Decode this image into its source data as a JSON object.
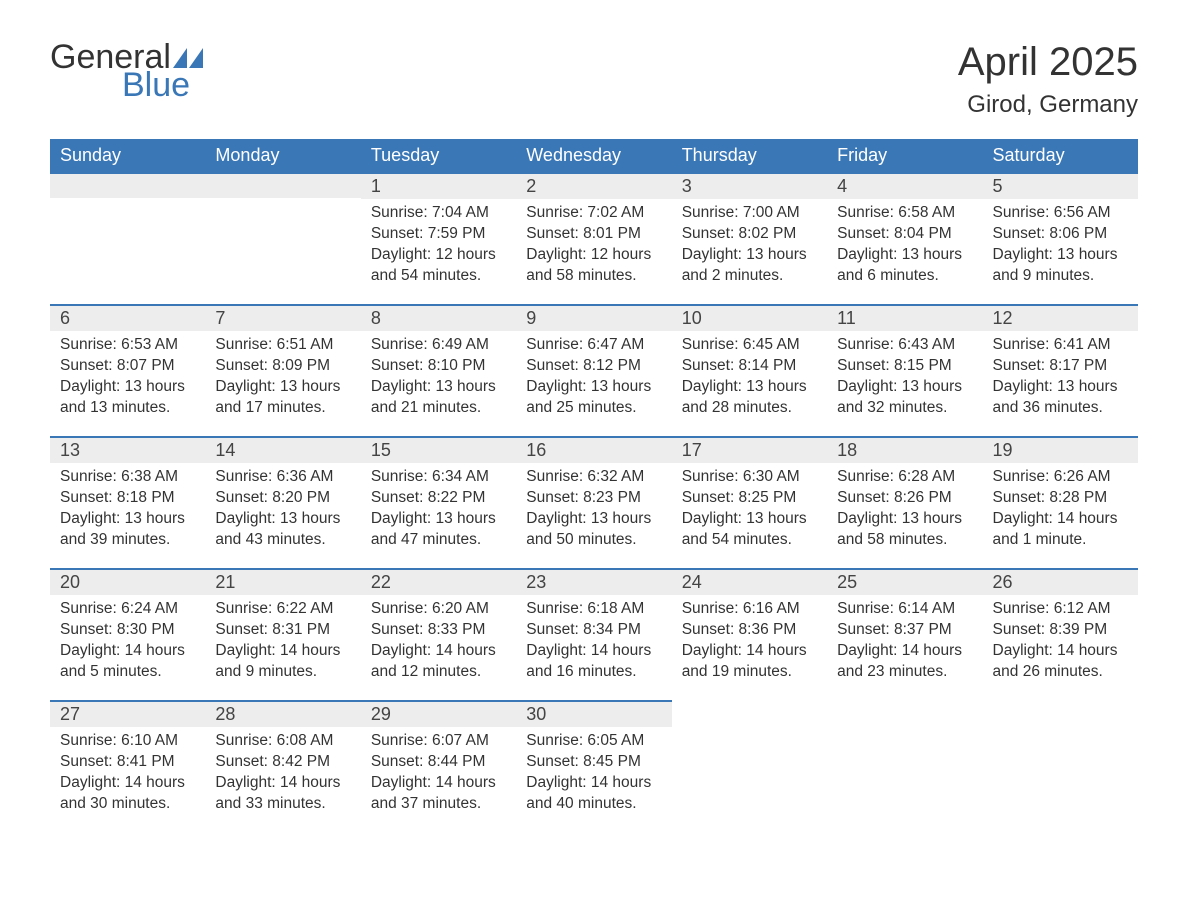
{
  "logo": {
    "word1": "General",
    "word2": "Blue",
    "flag_color": "#3a77b7"
  },
  "title": {
    "month": "April 2025",
    "location": "Girod, Germany"
  },
  "colors": {
    "header_bg": "#3a77b7",
    "header_text": "#ffffff",
    "daynum_bg": "#ededed",
    "daynum_border": "#3a77b7",
    "body_text": "#333333",
    "page_bg": "#ffffff"
  },
  "layout": {
    "columns": 7,
    "rows": 5,
    "font_family": "Arial",
    "day_header_fontsize": 18,
    "title_fontsize": 40,
    "location_fontsize": 24,
    "cell_fontsize": 15.5
  },
  "day_headers": [
    "Sunday",
    "Monday",
    "Tuesday",
    "Wednesday",
    "Thursday",
    "Friday",
    "Saturday"
  ],
  "weeks": [
    [
      null,
      null,
      {
        "n": "1",
        "sunrise": "Sunrise: 7:04 AM",
        "sunset": "Sunset: 7:59 PM",
        "daylight": "Daylight: 12 hours and 54 minutes."
      },
      {
        "n": "2",
        "sunrise": "Sunrise: 7:02 AM",
        "sunset": "Sunset: 8:01 PM",
        "daylight": "Daylight: 12 hours and 58 minutes."
      },
      {
        "n": "3",
        "sunrise": "Sunrise: 7:00 AM",
        "sunset": "Sunset: 8:02 PM",
        "daylight": "Daylight: 13 hours and 2 minutes."
      },
      {
        "n": "4",
        "sunrise": "Sunrise: 6:58 AM",
        "sunset": "Sunset: 8:04 PM",
        "daylight": "Daylight: 13 hours and 6 minutes."
      },
      {
        "n": "5",
        "sunrise": "Sunrise: 6:56 AM",
        "sunset": "Sunset: 8:06 PM",
        "daylight": "Daylight: 13 hours and 9 minutes."
      }
    ],
    [
      {
        "n": "6",
        "sunrise": "Sunrise: 6:53 AM",
        "sunset": "Sunset: 8:07 PM",
        "daylight": "Daylight: 13 hours and 13 minutes."
      },
      {
        "n": "7",
        "sunrise": "Sunrise: 6:51 AM",
        "sunset": "Sunset: 8:09 PM",
        "daylight": "Daylight: 13 hours and 17 minutes."
      },
      {
        "n": "8",
        "sunrise": "Sunrise: 6:49 AM",
        "sunset": "Sunset: 8:10 PM",
        "daylight": "Daylight: 13 hours and 21 minutes."
      },
      {
        "n": "9",
        "sunrise": "Sunrise: 6:47 AM",
        "sunset": "Sunset: 8:12 PM",
        "daylight": "Daylight: 13 hours and 25 minutes."
      },
      {
        "n": "10",
        "sunrise": "Sunrise: 6:45 AM",
        "sunset": "Sunset: 8:14 PM",
        "daylight": "Daylight: 13 hours and 28 minutes."
      },
      {
        "n": "11",
        "sunrise": "Sunrise: 6:43 AM",
        "sunset": "Sunset: 8:15 PM",
        "daylight": "Daylight: 13 hours and 32 minutes."
      },
      {
        "n": "12",
        "sunrise": "Sunrise: 6:41 AM",
        "sunset": "Sunset: 8:17 PM",
        "daylight": "Daylight: 13 hours and 36 minutes."
      }
    ],
    [
      {
        "n": "13",
        "sunrise": "Sunrise: 6:38 AM",
        "sunset": "Sunset: 8:18 PM",
        "daylight": "Daylight: 13 hours and 39 minutes."
      },
      {
        "n": "14",
        "sunrise": "Sunrise: 6:36 AM",
        "sunset": "Sunset: 8:20 PM",
        "daylight": "Daylight: 13 hours and 43 minutes."
      },
      {
        "n": "15",
        "sunrise": "Sunrise: 6:34 AM",
        "sunset": "Sunset: 8:22 PM",
        "daylight": "Daylight: 13 hours and 47 minutes."
      },
      {
        "n": "16",
        "sunrise": "Sunrise: 6:32 AM",
        "sunset": "Sunset: 8:23 PM",
        "daylight": "Daylight: 13 hours and 50 minutes."
      },
      {
        "n": "17",
        "sunrise": "Sunrise: 6:30 AM",
        "sunset": "Sunset: 8:25 PM",
        "daylight": "Daylight: 13 hours and 54 minutes."
      },
      {
        "n": "18",
        "sunrise": "Sunrise: 6:28 AM",
        "sunset": "Sunset: 8:26 PM",
        "daylight": "Daylight: 13 hours and 58 minutes."
      },
      {
        "n": "19",
        "sunrise": "Sunrise: 6:26 AM",
        "sunset": "Sunset: 8:28 PM",
        "daylight": "Daylight: 14 hours and 1 minute."
      }
    ],
    [
      {
        "n": "20",
        "sunrise": "Sunrise: 6:24 AM",
        "sunset": "Sunset: 8:30 PM",
        "daylight": "Daylight: 14 hours and 5 minutes."
      },
      {
        "n": "21",
        "sunrise": "Sunrise: 6:22 AM",
        "sunset": "Sunset: 8:31 PM",
        "daylight": "Daylight: 14 hours and 9 minutes."
      },
      {
        "n": "22",
        "sunrise": "Sunrise: 6:20 AM",
        "sunset": "Sunset: 8:33 PM",
        "daylight": "Daylight: 14 hours and 12 minutes."
      },
      {
        "n": "23",
        "sunrise": "Sunrise: 6:18 AM",
        "sunset": "Sunset: 8:34 PM",
        "daylight": "Daylight: 14 hours and 16 minutes."
      },
      {
        "n": "24",
        "sunrise": "Sunrise: 6:16 AM",
        "sunset": "Sunset: 8:36 PM",
        "daylight": "Daylight: 14 hours and 19 minutes."
      },
      {
        "n": "25",
        "sunrise": "Sunrise: 6:14 AM",
        "sunset": "Sunset: 8:37 PM",
        "daylight": "Daylight: 14 hours and 23 minutes."
      },
      {
        "n": "26",
        "sunrise": "Sunrise: 6:12 AM",
        "sunset": "Sunset: 8:39 PM",
        "daylight": "Daylight: 14 hours and 26 minutes."
      }
    ],
    [
      {
        "n": "27",
        "sunrise": "Sunrise: 6:10 AM",
        "sunset": "Sunset: 8:41 PM",
        "daylight": "Daylight: 14 hours and 30 minutes."
      },
      {
        "n": "28",
        "sunrise": "Sunrise: 6:08 AM",
        "sunset": "Sunset: 8:42 PM",
        "daylight": "Daylight: 14 hours and 33 minutes."
      },
      {
        "n": "29",
        "sunrise": "Sunrise: 6:07 AM",
        "sunset": "Sunset: 8:44 PM",
        "daylight": "Daylight: 14 hours and 37 minutes."
      },
      {
        "n": "30",
        "sunrise": "Sunrise: 6:05 AM",
        "sunset": "Sunset: 8:45 PM",
        "daylight": "Daylight: 14 hours and 40 minutes."
      },
      null,
      null,
      null
    ]
  ]
}
